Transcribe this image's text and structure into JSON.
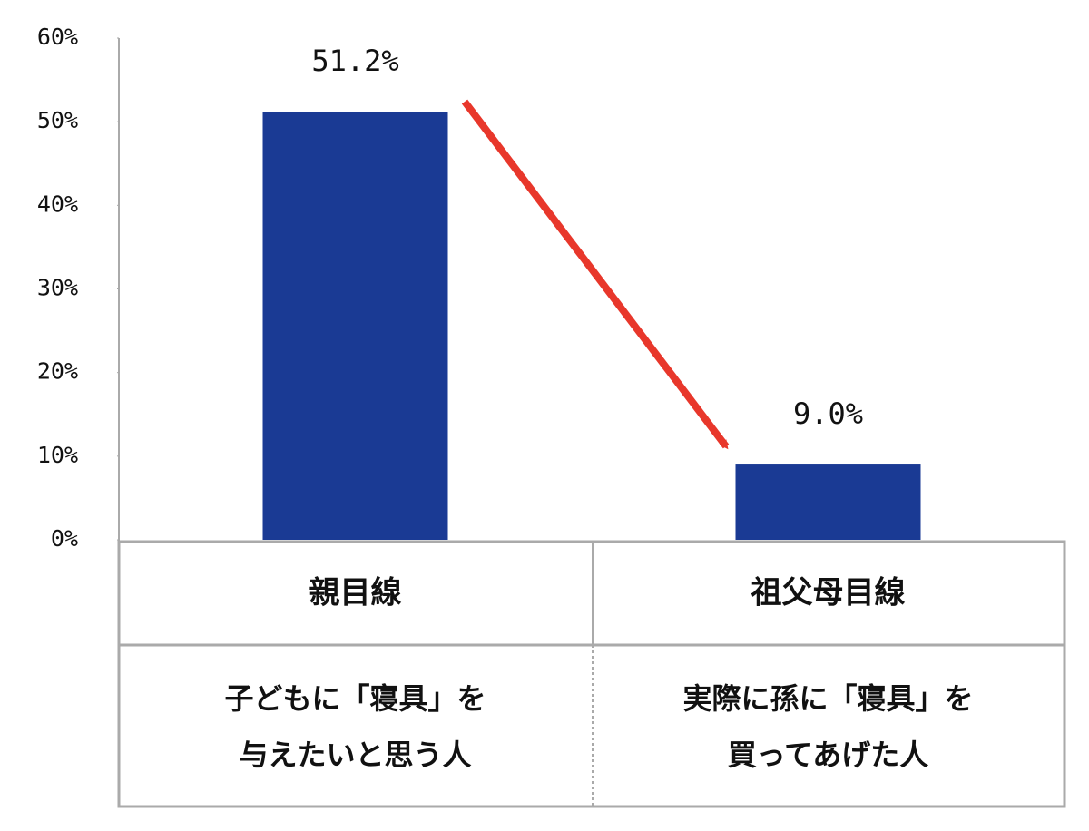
{
  "chart_data": {
    "type": "bar",
    "categories": [
      "親目線",
      "祖父母目線"
    ],
    "descriptions": [
      [
        "子どもに「寝具」を",
        "与えたいと思う人"
      ],
      [
        "実際に孫に「寝具」を",
        "買ってあげた人"
      ]
    ],
    "values": [
      51.2,
      9.0
    ],
    "value_labels": [
      "51.2%",
      "9.0%"
    ],
    "color": "#1a3a94",
    "ylim": [
      0,
      60
    ],
    "yticks": [
      {
        "value": 0,
        "label": "0%"
      },
      {
        "value": 10,
        "label": "10%"
      },
      {
        "value": 20,
        "label": "20%"
      },
      {
        "value": 30,
        "label": "30%"
      },
      {
        "value": 40,
        "label": "40%"
      },
      {
        "value": 50,
        "label": "50%"
      },
      {
        "value": 60,
        "label": "60%"
      }
    ],
    "grid": false
  }
}
